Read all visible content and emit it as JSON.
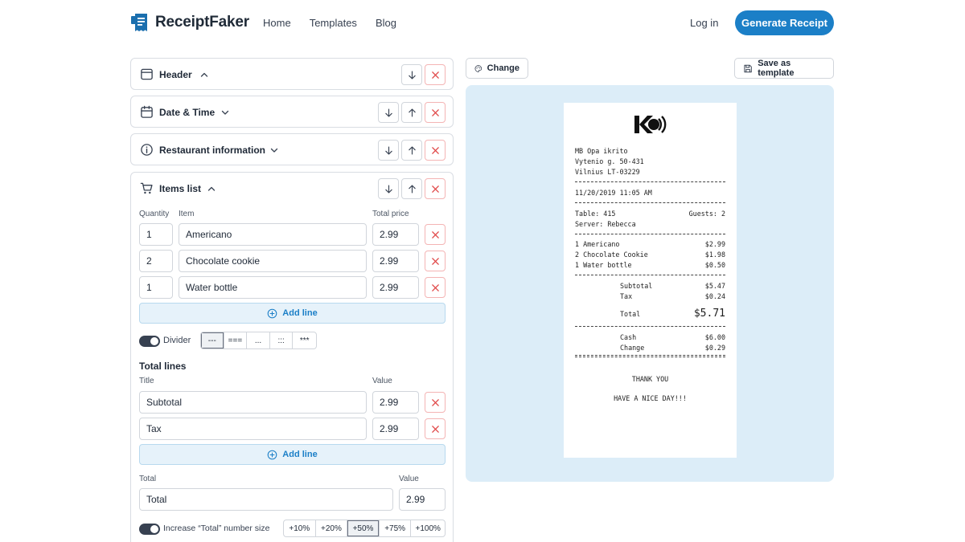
{
  "nav": {
    "brand": "ReceiptFaker",
    "links": [
      "Home",
      "Templates",
      "Blog"
    ],
    "login": "Log in",
    "cta": "Generate Receipt"
  },
  "sections": {
    "header": "Header",
    "datetime": "Date & Time",
    "restaurant": "Restaurant information",
    "items": "Items list"
  },
  "items": {
    "col_quantity": "Quantity",
    "col_item": "Item",
    "col_price": "Total price",
    "rows": [
      {
        "qty": "1",
        "name": "Americano",
        "price": "2.99"
      },
      {
        "qty": "2",
        "name": "Chocolate cookie",
        "price": "2.99"
      },
      {
        "qty": "1",
        "name": "Water bottle",
        "price": "2.99"
      }
    ],
    "add_line": "Add line"
  },
  "divider": {
    "label": "Divider",
    "options": [
      "---",
      "===",
      "...",
      ":::",
      "***"
    ],
    "selected": "---"
  },
  "total_lines": {
    "heading": "Total lines",
    "col_title": "Title",
    "col_value": "Value",
    "rows": [
      {
        "title": "Subtotal",
        "value": "2.99"
      },
      {
        "title": "Tax",
        "value": "2.99"
      }
    ],
    "add_line": "Add line"
  },
  "total": {
    "col_title": "Total",
    "col_value": "Value",
    "title": "Total",
    "value": "2.99",
    "increase_label": "Increase “Total” number size",
    "options": [
      "+10%",
      "+20%",
      "+50%",
      "+75%",
      "+100%"
    ],
    "selected": "+50%"
  },
  "toolbar": {
    "change": "Change",
    "save_template": "Save as template"
  },
  "receipt": {
    "address": [
      "MB Opa ikrito",
      "Vytenio g. 50-431",
      "Vilnius LT-03229"
    ],
    "datetime": "11/20/2019 11:05 AM",
    "table": "Table: 415",
    "guests": "Guests: 2",
    "server": "Server: Rebecca",
    "items": [
      {
        "name": "1 Americano",
        "price": "$2.99"
      },
      {
        "name": "2 Chocolate Cookie",
        "price": "$1.98"
      },
      {
        "name": "1 Water bottle",
        "price": "$0.50"
      }
    ],
    "subtotal_label": "Subtotal",
    "subtotal": "$5.47",
    "tax_label": "Tax",
    "tax": "$0.24",
    "total_label": "Total",
    "total": "$5.71",
    "cash_label": "Cash",
    "cash": "$6.00",
    "change_label": "Change",
    "change": "$0.29",
    "thanks": "THANK YOU",
    "nice_day": "HAVE A NICE DAY!!!"
  },
  "colors": {
    "primary": "#1b7fc7",
    "danger": "#e04646",
    "preview_bg": "#dcedf8"
  }
}
